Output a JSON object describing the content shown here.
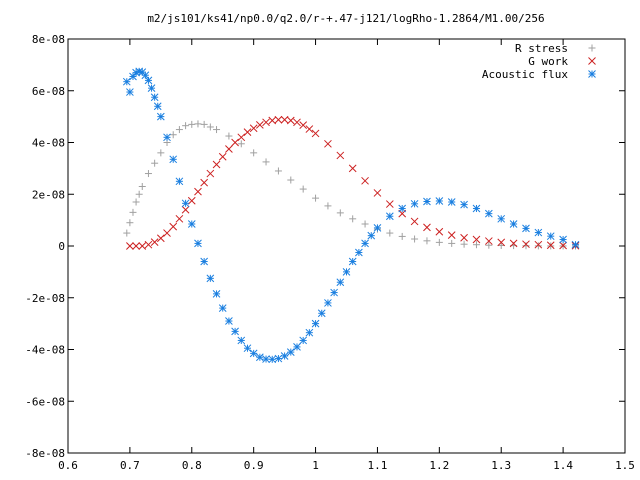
{
  "chart_data": {
    "type": "scatter",
    "title": "m2/js101/ks41/np0.0/q2.0/r-+.47-j121/logRho-1.2864/M1.00/256",
    "xlabel": "",
    "ylabel": "",
    "xlim": [
      0.6,
      1.5
    ],
    "ylim": [
      -8e-08,
      8e-08
    ],
    "x_ticks": [
      {
        "value": 0.6,
        "label": "0.6"
      },
      {
        "value": 0.7,
        "label": "0.7"
      },
      {
        "value": 0.8,
        "label": "0.8"
      },
      {
        "value": 0.9,
        "label": "0.9"
      },
      {
        "value": 1.0,
        "label": "1"
      },
      {
        "value": 1.1,
        "label": "1.1"
      },
      {
        "value": 1.2,
        "label": "1.2"
      },
      {
        "value": 1.3,
        "label": "1.3"
      },
      {
        "value": 1.4,
        "label": "1.4"
      },
      {
        "value": 1.5,
        "label": "1.5"
      }
    ],
    "y_ticks": [
      {
        "value": 8e-08,
        "label": "8e-08"
      },
      {
        "value": 6e-08,
        "label": "6e-08"
      },
      {
        "value": 4e-08,
        "label": "4e-08"
      },
      {
        "value": 2e-08,
        "label": "2e-08"
      },
      {
        "value": 0,
        "label": "0"
      },
      {
        "value": -2e-08,
        "label": "-2e-08"
      },
      {
        "value": -4e-08,
        "label": "-4e-08"
      },
      {
        "value": -6e-08,
        "label": "-6e-08"
      }
    ],
    "grid": false,
    "legend_position": "top-right",
    "series": [
      {
        "name": "R stress",
        "color": "#a0a0a0",
        "marker": "plus",
        "x": [
          0.695,
          0.7,
          0.705,
          0.71,
          0.715,
          0.72,
          0.73,
          0.74,
          0.75,
          0.76,
          0.77,
          0.78,
          0.79,
          0.8,
          0.81,
          0.82,
          0.83,
          0.84,
          0.86,
          0.88,
          0.9,
          0.92,
          0.94,
          0.96,
          0.98,
          1.0,
          1.02,
          1.04,
          1.06,
          1.08,
          1.1,
          1.12,
          1.14,
          1.16,
          1.18,
          1.2,
          1.22,
          1.24,
          1.26,
          1.28,
          1.3,
          1.32,
          1.34,
          1.36,
          1.38,
          1.4,
          1.42
        ],
        "y": [
          5e-09,
          9e-09,
          1.3e-08,
          1.7e-08,
          2e-08,
          2.3e-08,
          2.8e-08,
          3.2e-08,
          3.6e-08,
          4e-08,
          4.3e-08,
          4.5e-08,
          4.65e-08,
          4.7e-08,
          4.72e-08,
          4.7e-08,
          4.6e-08,
          4.5e-08,
          4.25e-08,
          3.95e-08,
          3.6e-08,
          3.25e-08,
          2.9e-08,
          2.55e-08,
          2.2e-08,
          1.85e-08,
          1.55e-08,
          1.28e-08,
          1.05e-08,
          8.5e-09,
          6.5e-09,
          5e-09,
          3.7e-09,
          2.7e-09,
          2e-09,
          1.4e-09,
          1e-09,
          7e-10,
          5e-10,
          3e-10,
          2e-10,
          1.5e-10,
          1e-10,
          5e-11,
          3e-11,
          2e-11,
          0.0
        ]
      },
      {
        "name": "G work",
        "color": "#cc2020",
        "marker": "cross",
        "x": [
          0.7,
          0.71,
          0.72,
          0.73,
          0.74,
          0.75,
          0.76,
          0.77,
          0.78,
          0.79,
          0.8,
          0.81,
          0.82,
          0.83,
          0.84,
          0.85,
          0.86,
          0.87,
          0.88,
          0.89,
          0.9,
          0.91,
          0.92,
          0.93,
          0.94,
          0.95,
          0.96,
          0.97,
          0.98,
          0.99,
          1.0,
          1.02,
          1.04,
          1.06,
          1.08,
          1.1,
          1.12,
          1.14,
          1.16,
          1.18,
          1.2,
          1.22,
          1.24,
          1.26,
          1.28,
          1.3,
          1.32,
          1.34,
          1.36,
          1.38,
          1.4,
          1.42
        ],
        "y": [
          0.0,
          0.0,
          0.0,
          5e-10,
          1.5e-09,
          3e-09,
          5e-09,
          7.5e-09,
          1.05e-08,
          1.4e-08,
          1.75e-08,
          2.1e-08,
          2.45e-08,
          2.8e-08,
          3.15e-08,
          3.45e-08,
          3.75e-08,
          4e-08,
          4.2e-08,
          4.4e-08,
          4.55e-08,
          4.68e-08,
          4.78e-08,
          4.85e-08,
          4.88e-08,
          4.88e-08,
          4.85e-08,
          4.78e-08,
          4.67e-08,
          4.52e-08,
          4.35e-08,
          3.95e-08,
          3.5e-08,
          3e-08,
          2.52e-08,
          2.05e-08,
          1.62e-08,
          1.25e-08,
          9.5e-09,
          7.2e-09,
          5.5e-09,
          4.2e-09,
          3.2e-09,
          2.5e-09,
          1.9e-09,
          1.4e-09,
          1e-09,
          7e-10,
          5e-10,
          3e-10,
          2e-10,
          1e-10
        ]
      },
      {
        "name": "Acoustic flux",
        "color": "#1a7fe0",
        "marker": "star",
        "x": [
          0.695,
          0.7,
          0.705,
          0.71,
          0.715,
          0.72,
          0.725,
          0.73,
          0.735,
          0.74,
          0.745,
          0.75,
          0.76,
          0.77,
          0.78,
          0.79,
          0.8,
          0.81,
          0.82,
          0.83,
          0.84,
          0.85,
          0.86,
          0.87,
          0.88,
          0.89,
          0.9,
          0.91,
          0.92,
          0.93,
          0.94,
          0.95,
          0.96,
          0.97,
          0.98,
          0.99,
          1.0,
          1.01,
          1.02,
          1.03,
          1.04,
          1.05,
          1.06,
          1.07,
          1.08,
          1.09,
          1.1,
          1.12,
          1.14,
          1.16,
          1.18,
          1.2,
          1.22,
          1.24,
          1.26,
          1.28,
          1.3,
          1.32,
          1.34,
          1.36,
          1.38,
          1.4,
          1.42
        ],
        "y": [
          6.35e-08,
          5.95e-08,
          6.55e-08,
          6.7e-08,
          6.75e-08,
          6.72e-08,
          6.6e-08,
          6.4e-08,
          6.1e-08,
          5.75e-08,
          5.4e-08,
          5e-08,
          4.2e-08,
          3.35e-08,
          2.5e-08,
          1.65e-08,
          8.5e-09,
          1e-09,
          -6e-09,
          -1.25e-08,
          -1.85e-08,
          -2.4e-08,
          -2.9e-08,
          -3.3e-08,
          -3.65e-08,
          -3.95e-08,
          -4.15e-08,
          -4.3e-08,
          -4.37e-08,
          -4.38e-08,
          -4.35e-08,
          -4.25e-08,
          -4.1e-08,
          -3.9e-08,
          -3.65e-08,
          -3.35e-08,
          -3e-08,
          -2.6e-08,
          -2.2e-08,
          -1.8e-08,
          -1.4e-08,
          -1e-08,
          -6e-09,
          -2.5e-09,
          1e-09,
          4e-09,
          7e-09,
          1.15e-08,
          1.45e-08,
          1.63e-08,
          1.72e-08,
          1.74e-08,
          1.7e-08,
          1.6e-08,
          1.45e-08,
          1.25e-08,
          1.05e-08,
          8.5e-09,
          6.8e-09,
          5.2e-09,
          3.8e-09,
          2.5e-09,
          5e-10
        ]
      }
    ]
  }
}
